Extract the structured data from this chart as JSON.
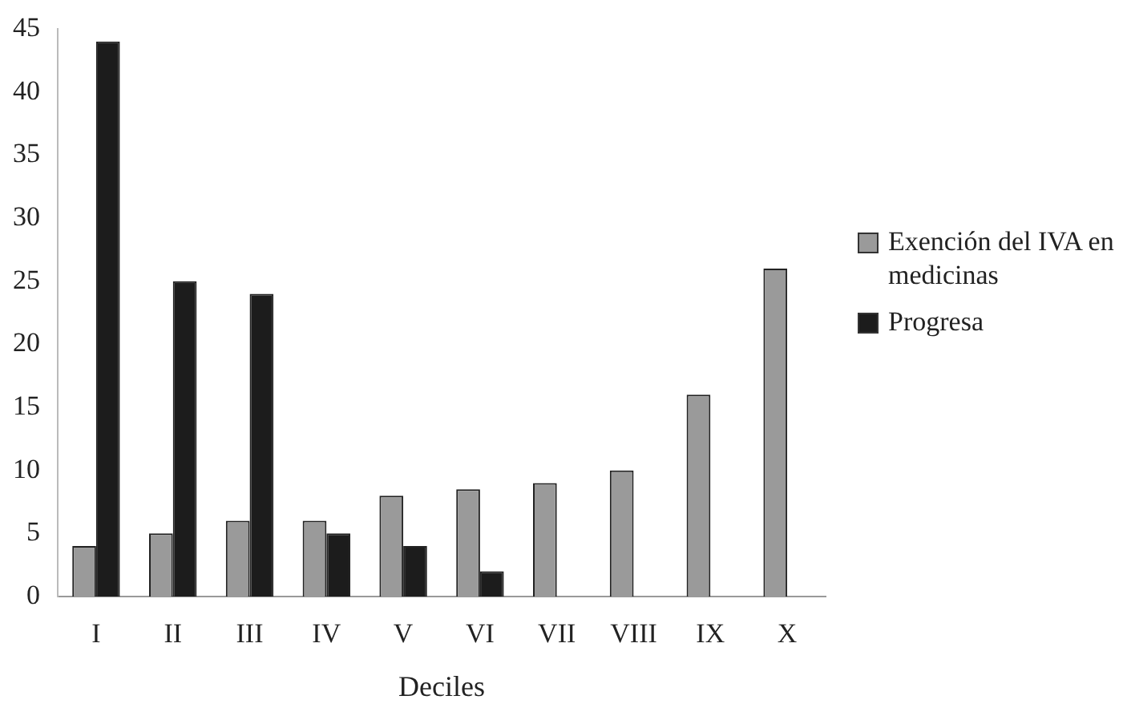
{
  "chart_data": {
    "type": "bar",
    "xlabel": "Deciles",
    "categories": [
      "I",
      "II",
      "III",
      "IV",
      "V",
      "VI",
      "VII",
      "VIII",
      "IX",
      "X"
    ],
    "series": [
      {
        "name": "Exención del IVA en medicinas",
        "color": "#9a9a9a",
        "values": [
          4,
          5,
          6,
          6,
          8,
          8.5,
          9,
          10,
          16,
          26
        ]
      },
      {
        "name": "Progresa",
        "color": "#1c1c1c",
        "values": [
          44,
          25,
          24,
          5,
          4,
          2,
          null,
          null,
          null,
          null
        ]
      }
    ],
    "ylim": [
      0,
      45
    ],
    "yticks": [
      0,
      5,
      10,
      15,
      20,
      25,
      30,
      35,
      40,
      45
    ],
    "grid": false,
    "legend": "right"
  }
}
